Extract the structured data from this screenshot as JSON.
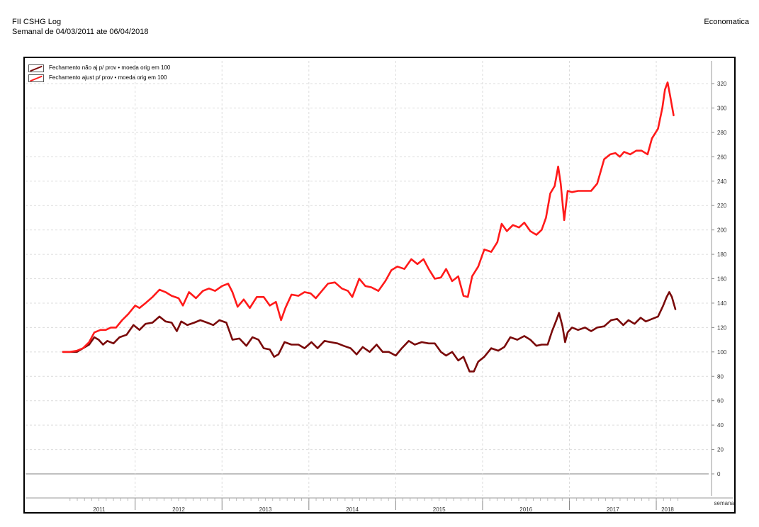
{
  "header": {
    "title": "FII CSHG Log",
    "subtitle": "Semanal de 04/03/2011 ate 06/04/2018",
    "brand": "Economatica"
  },
  "chart_data": {
    "type": "line",
    "ylim": [
      -15,
      330
    ],
    "yticks": [
      0,
      20,
      40,
      60,
      80,
      100,
      120,
      140,
      160,
      180,
      200,
      220,
      240,
      260,
      280,
      300,
      320
    ],
    "xlim": [
      2011.17,
      2018.26
    ],
    "xlabel": "semana",
    "year_labels": [
      "2011",
      "2012",
      "2013",
      "2014",
      "2015",
      "2016",
      "2017",
      "2018"
    ],
    "grid": true,
    "legend": "top-left",
    "series": [
      {
        "name": "Fechamento  não aj p/ prov • moeda orig em 100",
        "color": "#7a0a0a",
        "points": [
          [
            2011.17,
            100
          ],
          [
            2011.25,
            100
          ],
          [
            2011.33,
            100
          ],
          [
            2011.4,
            103
          ],
          [
            2011.47,
            106
          ],
          [
            2011.53,
            112
          ],
          [
            2011.58,
            110
          ],
          [
            2011.63,
            106
          ],
          [
            2011.68,
            109
          ],
          [
            2011.75,
            107
          ],
          [
            2011.82,
            112
          ],
          [
            2011.9,
            114
          ],
          [
            2011.98,
            122
          ],
          [
            2012.05,
            118
          ],
          [
            2012.12,
            123
          ],
          [
            2012.2,
            124
          ],
          [
            2012.28,
            129
          ],
          [
            2012.35,
            125
          ],
          [
            2012.42,
            124
          ],
          [
            2012.48,
            117
          ],
          [
            2012.53,
            125
          ],
          [
            2012.6,
            122
          ],
          [
            2012.68,
            124
          ],
          [
            2012.75,
            126
          ],
          [
            2012.83,
            124
          ],
          [
            2012.9,
            122
          ],
          [
            2012.97,
            126
          ],
          [
            2013.05,
            124
          ],
          [
            2013.12,
            110
          ],
          [
            2013.2,
            111
          ],
          [
            2013.28,
            105
          ],
          [
            2013.35,
            112
          ],
          [
            2013.42,
            110
          ],
          [
            2013.48,
            103
          ],
          [
            2013.55,
            102
          ],
          [
            2013.6,
            96
          ],
          [
            2013.65,
            98
          ],
          [
            2013.72,
            108
          ],
          [
            2013.8,
            106
          ],
          [
            2013.88,
            106
          ],
          [
            2013.95,
            103
          ],
          [
            2014.03,
            108
          ],
          [
            2014.1,
            103
          ],
          [
            2014.18,
            109
          ],
          [
            2014.25,
            108
          ],
          [
            2014.33,
            107
          ],
          [
            2014.4,
            105
          ],
          [
            2014.48,
            103
          ],
          [
            2014.55,
            98
          ],
          [
            2014.62,
            104
          ],
          [
            2014.7,
            100
          ],
          [
            2014.78,
            106
          ],
          [
            2014.85,
            100
          ],
          [
            2014.92,
            100
          ],
          [
            2015.0,
            97
          ],
          [
            2015.07,
            103
          ],
          [
            2015.15,
            109
          ],
          [
            2015.22,
            106
          ],
          [
            2015.3,
            108
          ],
          [
            2015.38,
            107
          ],
          [
            2015.45,
            107
          ],
          [
            2015.52,
            100
          ],
          [
            2015.58,
            97
          ],
          [
            2015.65,
            100
          ],
          [
            2015.72,
            93
          ],
          [
            2015.78,
            96
          ],
          [
            2015.85,
            84
          ],
          [
            2015.9,
            84
          ],
          [
            2015.95,
            92
          ],
          [
            2016.02,
            96
          ],
          [
            2016.1,
            103
          ],
          [
            2016.18,
            101
          ],
          [
            2016.25,
            104
          ],
          [
            2016.32,
            112
          ],
          [
            2016.4,
            110
          ],
          [
            2016.48,
            113
          ],
          [
            2016.55,
            110
          ],
          [
            2016.62,
            105
          ],
          [
            2016.68,
            106
          ],
          [
            2016.75,
            106
          ],
          [
            2016.8,
            117
          ],
          [
            2016.85,
            126
          ],
          [
            2016.88,
            132
          ],
          [
            2016.92,
            121
          ],
          [
            2016.95,
            108
          ],
          [
            2016.98,
            116
          ],
          [
            2017.03,
            120
          ],
          [
            2017.1,
            118
          ],
          [
            2017.18,
            120
          ],
          [
            2017.25,
            117
          ],
          [
            2017.32,
            120
          ],
          [
            2017.4,
            121
          ],
          [
            2017.48,
            126
          ],
          [
            2017.55,
            127
          ],
          [
            2017.62,
            122
          ],
          [
            2017.68,
            126
          ],
          [
            2017.75,
            123
          ],
          [
            2017.82,
            128
          ],
          [
            2017.88,
            125
          ],
          [
            2017.95,
            127
          ],
          [
            2018.02,
            129
          ],
          [
            2018.08,
            138
          ],
          [
            2018.12,
            145
          ],
          [
            2018.15,
            149
          ],
          [
            2018.18,
            145
          ],
          [
            2018.22,
            135
          ]
        ]
      },
      {
        "name": "Fechamento  ajust p/ prov • moeda orig em 100",
        "color": "#ff1a1a",
        "points": [
          [
            2011.17,
            100
          ],
          [
            2011.25,
            100
          ],
          [
            2011.33,
            101
          ],
          [
            2011.4,
            103
          ],
          [
            2011.47,
            108
          ],
          [
            2011.53,
            116
          ],
          [
            2011.6,
            118
          ],
          [
            2011.66,
            118
          ],
          [
            2011.72,
            120
          ],
          [
            2011.78,
            120
          ],
          [
            2011.85,
            126
          ],
          [
            2011.92,
            131
          ],
          [
            2012.0,
            138
          ],
          [
            2012.05,
            136
          ],
          [
            2012.12,
            140
          ],
          [
            2012.2,
            145
          ],
          [
            2012.28,
            151
          ],
          [
            2012.35,
            149
          ],
          [
            2012.42,
            146
          ],
          [
            2012.5,
            144
          ],
          [
            2012.55,
            138
          ],
          [
            2012.62,
            149
          ],
          [
            2012.7,
            144
          ],
          [
            2012.78,
            150
          ],
          [
            2012.85,
            152
          ],
          [
            2012.92,
            150
          ],
          [
            2013.0,
            154
          ],
          [
            2013.07,
            156
          ],
          [
            2013.12,
            149
          ],
          [
            2013.18,
            137
          ],
          [
            2013.25,
            143
          ],
          [
            2013.32,
            136
          ],
          [
            2013.4,
            145
          ],
          [
            2013.48,
            145
          ],
          [
            2013.55,
            138
          ],
          [
            2013.62,
            141
          ],
          [
            2013.68,
            126
          ],
          [
            2013.73,
            136
          ],
          [
            2013.8,
            147
          ],
          [
            2013.88,
            146
          ],
          [
            2013.95,
            149
          ],
          [
            2014.02,
            148
          ],
          [
            2014.08,
            144
          ],
          [
            2014.15,
            150
          ],
          [
            2014.22,
            156
          ],
          [
            2014.3,
            157
          ],
          [
            2014.38,
            152
          ],
          [
            2014.45,
            150
          ],
          [
            2014.5,
            145
          ],
          [
            2014.58,
            160
          ],
          [
            2014.65,
            154
          ],
          [
            2014.72,
            153
          ],
          [
            2014.8,
            150
          ],
          [
            2014.88,
            158
          ],
          [
            2014.95,
            167
          ],
          [
            2015.02,
            170
          ],
          [
            2015.1,
            168
          ],
          [
            2015.18,
            176
          ],
          [
            2015.25,
            172
          ],
          [
            2015.32,
            176
          ],
          [
            2015.38,
            168
          ],
          [
            2015.45,
            160
          ],
          [
            2015.52,
            161
          ],
          [
            2015.58,
            168
          ],
          [
            2015.65,
            158
          ],
          [
            2015.72,
            162
          ],
          [
            2015.78,
            146
          ],
          [
            2015.83,
            145
          ],
          [
            2015.88,
            162
          ],
          [
            2015.95,
            170
          ],
          [
            2016.02,
            184
          ],
          [
            2016.1,
            182
          ],
          [
            2016.17,
            190
          ],
          [
            2016.22,
            205
          ],
          [
            2016.28,
            199
          ],
          [
            2016.35,
            204
          ],
          [
            2016.42,
            202
          ],
          [
            2016.48,
            206
          ],
          [
            2016.55,
            199
          ],
          [
            2016.62,
            196
          ],
          [
            2016.68,
            200
          ],
          [
            2016.73,
            210
          ],
          [
            2016.78,
            230
          ],
          [
            2016.83,
            236
          ],
          [
            2016.87,
            252
          ],
          [
            2016.9,
            238
          ],
          [
            2016.94,
            208
          ],
          [
            2016.98,
            232
          ],
          [
            2017.03,
            231
          ],
          [
            2017.1,
            232
          ],
          [
            2017.18,
            232
          ],
          [
            2017.25,
            232
          ],
          [
            2017.32,
            238
          ],
          [
            2017.4,
            258
          ],
          [
            2017.47,
            262
          ],
          [
            2017.53,
            263
          ],
          [
            2017.58,
            260
          ],
          [
            2017.63,
            264
          ],
          [
            2017.7,
            262
          ],
          [
            2017.77,
            265
          ],
          [
            2017.83,
            265
          ],
          [
            2017.9,
            262
          ],
          [
            2017.95,
            275
          ],
          [
            2018.02,
            283
          ],
          [
            2018.07,
            300
          ],
          [
            2018.1,
            315
          ],
          [
            2018.13,
            321
          ],
          [
            2018.16,
            310
          ],
          [
            2018.2,
            294
          ]
        ]
      }
    ]
  }
}
